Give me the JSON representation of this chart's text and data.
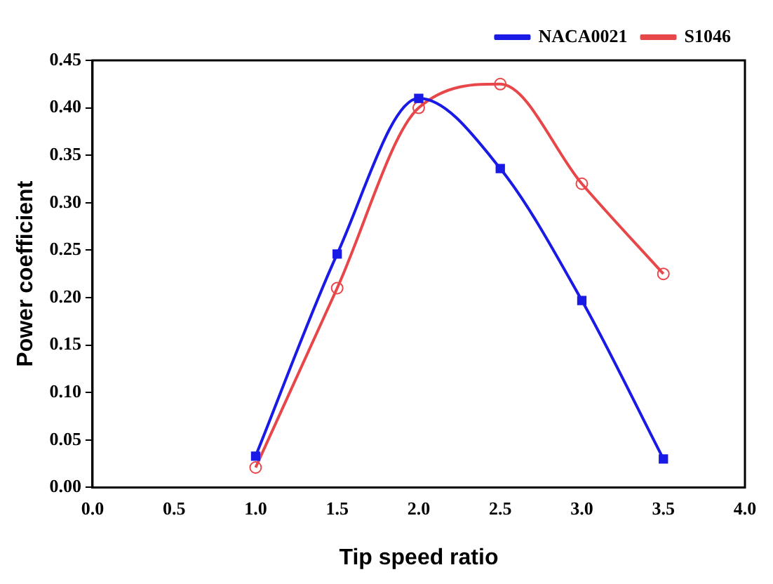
{
  "chart_data": {
    "type": "line",
    "xlabel": "Tip speed ratio",
    "ylabel": "Power coefficient",
    "x": [
      1.0,
      1.5,
      2.0,
      2.5,
      3.0,
      3.5
    ],
    "series": [
      {
        "name": "NACA0021",
        "color": "#1a1ae6",
        "values": [
          0.033,
          0.246,
          0.41,
          0.336,
          0.197,
          0.03
        ],
        "marker": "square"
      },
      {
        "name": "S1046",
        "color": "#e8474a",
        "values": [
          0.021,
          0.21,
          0.4,
          0.425,
          0.32,
          0.225
        ],
        "marker": "circle"
      }
    ],
    "xlim": [
      0,
      4
    ],
    "xticks": [
      {
        "value": 0,
        "label": "0.0"
      },
      {
        "value": 0.5,
        "label": "0.5"
      },
      {
        "value": 1,
        "label": "1.0"
      },
      {
        "value": 1.5,
        "label": "1.5"
      },
      {
        "value": 2,
        "label": "2.0"
      },
      {
        "value": 2.5,
        "label": "2.5"
      },
      {
        "value": 3,
        "label": "3.0"
      },
      {
        "value": 3.5,
        "label": "3.5"
      },
      {
        "value": 4,
        "label": "4.0"
      }
    ],
    "ylim": [
      0,
      0.45
    ],
    "yticks": [
      {
        "value": 0,
        "label": "0.00"
      },
      {
        "value": 0.05,
        "label": "0.05"
      },
      {
        "value": 0.1,
        "label": "0.10"
      },
      {
        "value": 0.15,
        "label": "0.15"
      },
      {
        "value": 0.2,
        "label": "0.20"
      },
      {
        "value": 0.25,
        "label": "0.25"
      },
      {
        "value": 0.3,
        "label": "0.30"
      },
      {
        "value": 0.35,
        "label": "0.35"
      },
      {
        "value": 0.4,
        "label": "0.40"
      },
      {
        "value": 0.45,
        "label": "0.45"
      }
    ],
    "grid": false,
    "legend": "top right",
    "line_style": "solid"
  }
}
